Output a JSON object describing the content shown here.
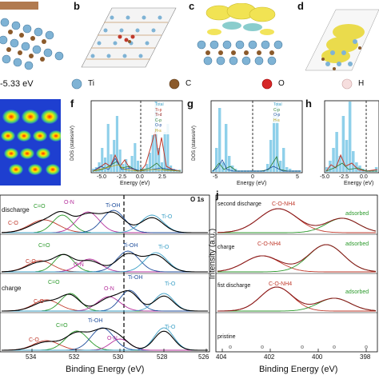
{
  "panels": {
    "b": "b",
    "c": "c",
    "d": "d",
    "f": "f",
    "g": "g",
    "h": "h",
    "j": "j"
  },
  "energy_text": "-5.33 eV",
  "atom_legend": [
    {
      "label": "Ti",
      "color": "#7fb3d5"
    },
    {
      "label": "C",
      "color": "#8b5a2b"
    },
    {
      "label": "O",
      "color": "#d62728"
    },
    {
      "label": "H",
      "color": "#f2d7d5"
    }
  ],
  "dos": {
    "ylabel": "DOS (states/eV)",
    "xlabel": "Energy (eV)",
    "f": {
      "ticks_x": [
        "-5.0",
        "-2.5",
        "0.0",
        "2.5"
      ],
      "ticks_y": [
        "0",
        "5",
        "10"
      ],
      "legend": [
        "Total",
        "Ti-p",
        "Ti-d",
        "C-p",
        "O-p",
        "H-s"
      ]
    },
    "g": {
      "ticks_x": [
        "-5",
        "0",
        "5"
      ],
      "ticks_y": [
        "0",
        "10",
        "20"
      ],
      "legend": [
        "Total",
        "C-p",
        "O-p",
        "H-s"
      ]
    },
    "h": {
      "ticks_x": [
        "-5.0",
        "-2.5",
        "0.0",
        "2.5"
      ],
      "ticks_y": [
        "0",
        "5",
        "10"
      ]
    }
  },
  "xps_o1s": {
    "title": "O 1s",
    "xlabel": "Binding Energy (eV)",
    "ticks_x": [
      "534",
      "532",
      "530",
      "528",
      "526"
    ],
    "rows": [
      {
        "label": "discharge",
        "peaks": [
          "C=O",
          "O-N",
          "Ti-OH",
          "C-O",
          "Ti-O"
        ]
      },
      {
        "label": "",
        "peaks": [
          "C=O",
          "C-O",
          "O-N",
          "Ti-OH",
          "Ti-O"
        ]
      },
      {
        "label": "charge",
        "peaks": [
          "C=O",
          "C-O",
          "O-N",
          "Ti-OH",
          "Ti-O"
        ]
      },
      {
        "label": "",
        "peaks": [
          "C=O",
          "Ti-OH",
          "C-O",
          "O-N",
          "Ti-O"
        ]
      }
    ]
  },
  "xps_n1s": {
    "ylabel": "Intensity (a.u.)",
    "xlabel": "Binding Energy (eV)",
    "ticks_x": [
      "404",
      "402",
      "400",
      "398"
    ],
    "rows": [
      {
        "label": "second discharge",
        "peak": "C-O-NH4",
        "adsorbed": "adsorbed"
      },
      {
        "label": "charge",
        "peak": "C-O-NH4",
        "adsorbed": "adsorbed"
      },
      {
        "label": "fist discharge",
        "peak": "C-O-NH4",
        "adsorbed": "adsorbed"
      },
      {
        "label": "pristine",
        "peak": "",
        "adsorbed": ""
      }
    ]
  },
  "colors": {
    "dos_fill": "#8fd0ea",
    "ti": "#7fb3d5",
    "c": "#8b5a2b",
    "density": "#f1e24a"
  }
}
